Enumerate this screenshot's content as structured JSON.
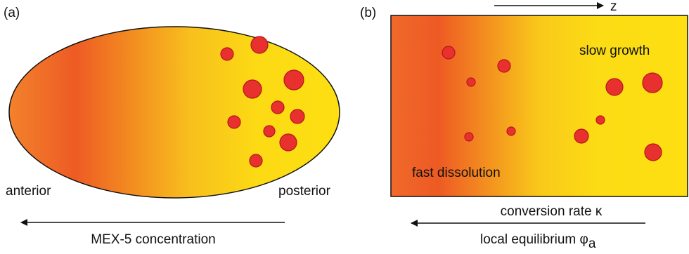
{
  "panel_a": {
    "label": "(a)",
    "left_label": "anterior",
    "right_label": "posterior",
    "arrow_label": "MEX-5 concentration"
  },
  "panel_b": {
    "label": "(b)",
    "axis_label": "z",
    "top_right_label": "slow growth",
    "bottom_left_label": "fast dissolution",
    "arrow_label_top": "conversion rate κ",
    "arrow_label_bottom": "local equilibrium φ",
    "arrow_label_bottom_subscript": "a"
  }
}
